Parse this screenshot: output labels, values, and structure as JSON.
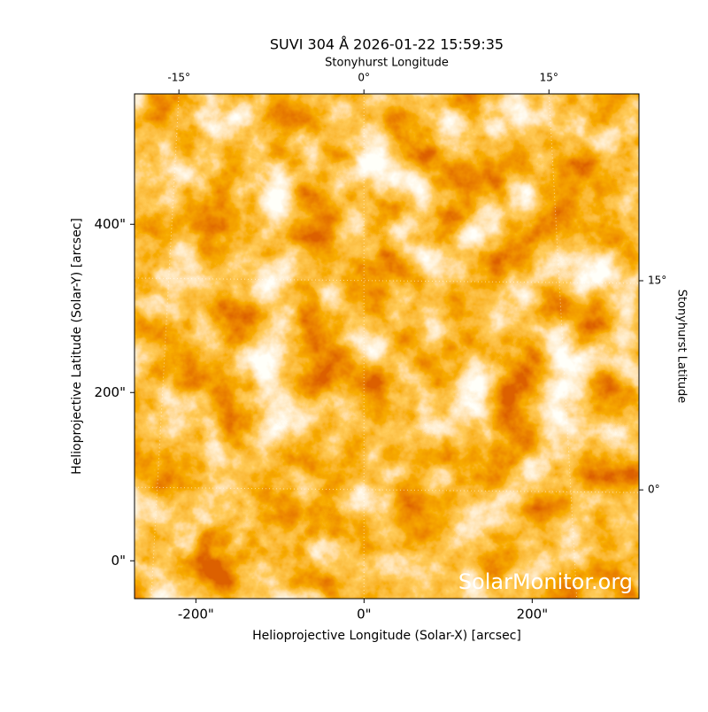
{
  "chart_data": {
    "type": "image",
    "title": "SUVI 304 Å 2026-01-22 15:59:35",
    "xlabel": "Helioprojective Longitude (Solar-X) [arcsec]",
    "ylabel": "Helioprojective Latitude (Solar-Y) [arcsec]",
    "x2label": "Stonyhurst Longitude",
    "y2label": "Stonyhurst Latitude",
    "annotation": "SolarMonitor.org",
    "xlim": [
      -273,
      327
    ],
    "ylim": [
      -45,
      555
    ],
    "xticks": [
      {
        "value": -200,
        "label": "-200\""
      },
      {
        "value": 0,
        "label": "0\""
      },
      {
        "value": 200,
        "label": "200\""
      }
    ],
    "yticks": [
      {
        "value": 0,
        "label": "0\""
      },
      {
        "value": 200,
        "label": "200\""
      },
      {
        "value": 400,
        "label": "400\""
      }
    ],
    "x2lim": [
      -18.6,
      22.3
    ],
    "x2ticks": [
      {
        "value": -15,
        "label": "-15°"
      },
      {
        "value": 0,
        "label": "0°"
      },
      {
        "value": 15,
        "label": "15°"
      }
    ],
    "y2lim": [
      -7.8,
      28.4
    ],
    "y2ticks": [
      {
        "value": 0,
        "label": "0°"
      },
      {
        "value": 15,
        "label": "15°"
      }
    ],
    "grid": true
  }
}
